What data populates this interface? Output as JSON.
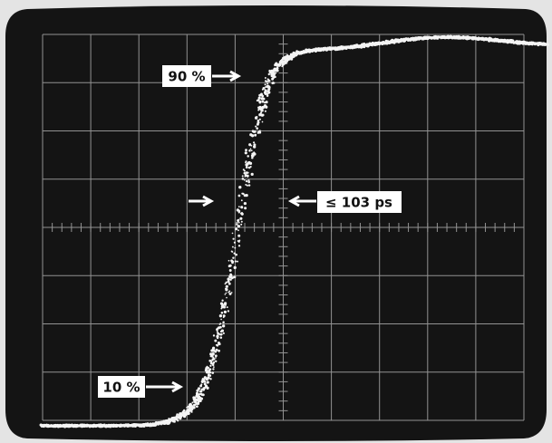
{
  "annotations": [
    "90 %",
    "10 %",
    "≤ 103 ps"
  ]
}
